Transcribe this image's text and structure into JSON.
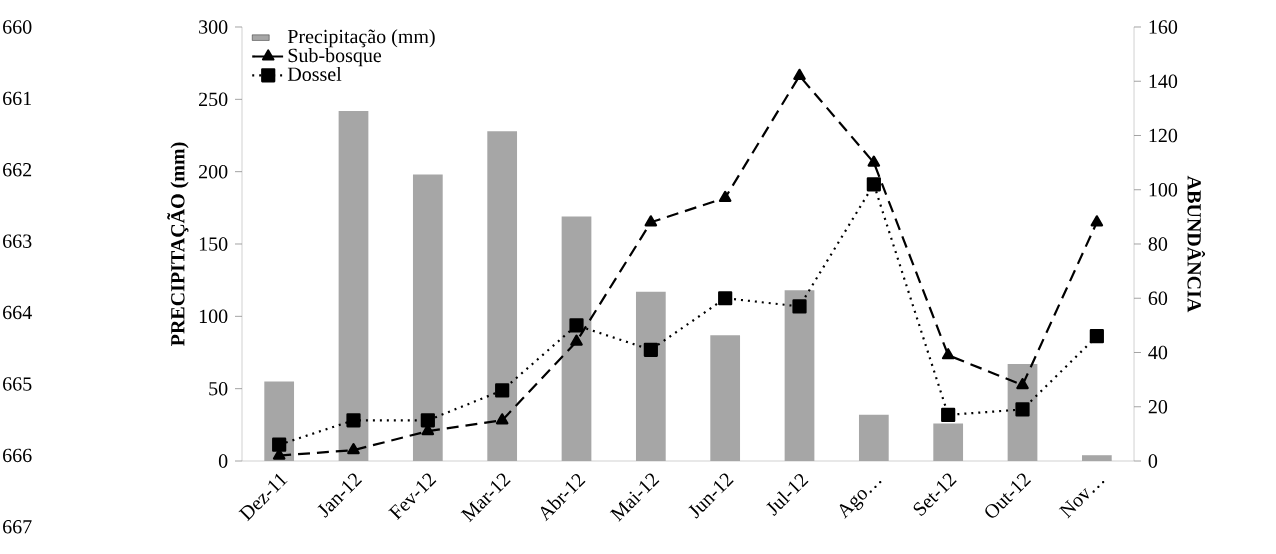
{
  "chart_data": {
    "type": "bar",
    "ylabel": "PRECIPITAÇÃO (mm)",
    "y2label": "ABUNDÂNCIA",
    "categories": [
      "Dez-11",
      "Jan-12",
      "Fev-12",
      "Mar-12",
      "Abr-12",
      "Mai-12",
      "Jun-12",
      "Jul-12",
      "Ago…",
      "Set-12",
      "Out-12",
      "Nov…"
    ],
    "series": [
      {
        "name": "Precipitação (mm)",
        "color": "#a6a6a6",
        "values": [
          55,
          242,
          198,
          228,
          169,
          117,
          87,
          118,
          32,
          26,
          67,
          4
        ]
      },
      {
        "name": "Sub-bosque",
        "type": "line",
        "axis": "y2",
        "color": "#000000",
        "marker": "triangle",
        "line_style": "dashed",
        "values": [
          2,
          4,
          11,
          15,
          44,
          88,
          97,
          142,
          110,
          39,
          28,
          88
        ]
      },
      {
        "name": "Dossel",
        "type": "line",
        "axis": "y2",
        "color": "#000000",
        "marker": "square",
        "line_style": "dotted",
        "values": [
          6,
          15,
          15,
          26,
          50,
          41,
          60,
          57,
          102,
          17,
          19,
          46
        ]
      }
    ],
    "ylim": [
      0,
      300
    ],
    "yticks": [
      0,
      50,
      100,
      150,
      200,
      250,
      300
    ],
    "y2lim": [
      0,
      160
    ],
    "y2ticks": [
      0,
      20,
      40,
      60,
      80,
      100,
      120,
      140,
      160
    ],
    "legend": "top left",
    "annotations": [
      "660",
      "661",
      "662",
      "663",
      "664",
      "665",
      "666",
      "667"
    ]
  }
}
